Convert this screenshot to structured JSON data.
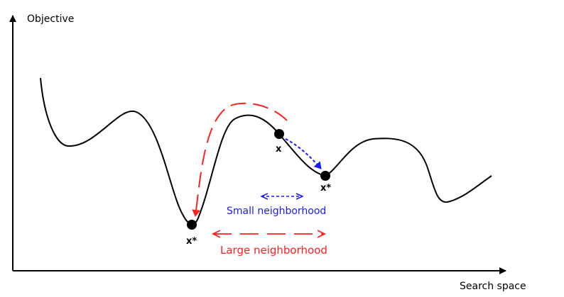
{
  "axes": {
    "y_label": "Objective",
    "x_label": "Search space"
  },
  "points": {
    "current": "x",
    "local_optimum": "x*",
    "global_optimum": "x*"
  },
  "neighborhoods": {
    "small": "Small neighborhood",
    "large": "Large neighborhood"
  },
  "colors": {
    "curve": "#000000",
    "small": "#1a1aff",
    "large": "#ff2020"
  }
}
